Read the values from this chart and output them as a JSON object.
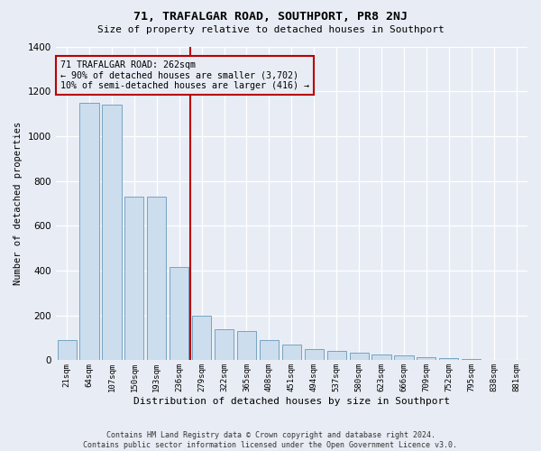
{
  "title": "71, TRAFALGAR ROAD, SOUTHPORT, PR8 2NJ",
  "subtitle": "Size of property relative to detached houses in Southport",
  "xlabel": "Distribution of detached houses by size in Southport",
  "ylabel": "Number of detached properties",
  "footer": "Contains HM Land Registry data © Crown copyright and database right 2024.\nContains public sector information licensed under the Open Government Licence v3.0.",
  "categories": [
    "21sqm",
    "64sqm",
    "107sqm",
    "150sqm",
    "193sqm",
    "236sqm",
    "279sqm",
    "322sqm",
    "365sqm",
    "408sqm",
    "451sqm",
    "494sqm",
    "537sqm",
    "580sqm",
    "623sqm",
    "666sqm",
    "709sqm",
    "752sqm",
    "795sqm",
    "838sqm",
    "881sqm"
  ],
  "values": [
    90,
    1150,
    1140,
    730,
    730,
    415,
    200,
    140,
    130,
    90,
    70,
    50,
    40,
    35,
    25,
    20,
    15,
    10,
    5,
    2,
    1
  ],
  "bar_color": "#ccdded",
  "bar_edge_color": "#6699bb",
  "vline_color": "#bb0000",
  "vline_x": 5.5,
  "annotation_text": "71 TRAFALGAR ROAD: 262sqm\n← 90% of detached houses are smaller (3,702)\n10% of semi-detached houses are larger (416) →",
  "annotation_box_edge_color": "#bb0000",
  "ylim": [
    0,
    1400
  ],
  "yticks": [
    0,
    200,
    400,
    600,
    800,
    1000,
    1200,
    1400
  ],
  "background_color": "#e8edf5",
  "grid_color": "#ffffff"
}
